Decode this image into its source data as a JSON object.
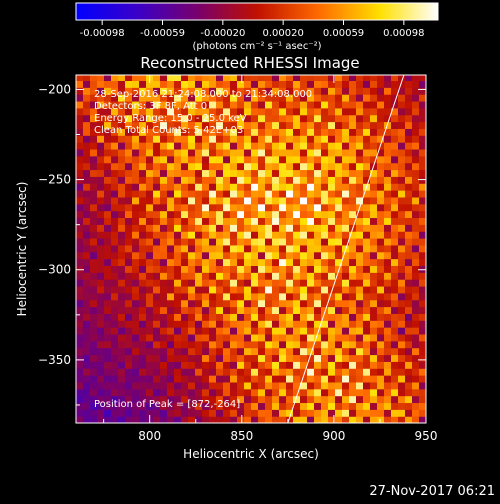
{
  "chart_data": {
    "type": "heatmap",
    "title": "Reconstructed RHESSI Image",
    "xlabel": "Heliocentric X (arcsec)",
    "ylabel": "Heliocentric Y (arcsec)",
    "xlim": [
      760,
      950
    ],
    "ylim": [
      -385,
      -192
    ],
    "x_ticks": [
      800,
      850,
      900,
      950
    ],
    "y_ticks": [
      -200,
      -250,
      -300,
      -350
    ],
    "colorbar": {
      "ticks": [
        "-0.00098",
        "-0.00059",
        "-0.00020",
        "0.00020",
        "0.00059",
        "0.00098"
      ],
      "range": [
        -0.00098,
        0.00098
      ],
      "label": "(photons cm⁻² s⁻¹ asec⁻²)",
      "colors": [
        "#0000ff",
        "#3a00c8",
        "#7a006a",
        "#c01000",
        "#ff6a00",
        "#ffe000",
        "#ffffff"
      ]
    },
    "annotations": [
      "28-Sep-2016 21:24:08.000 to 21:34:08.000",
      "Detectors: 3F 8F, Att 0",
      "Energy Range: 15.0 - 25.0 keV",
      "Clean    Total Counts: 5.42E+03"
    ],
    "peak_text": "Position of Peak = [872,-264]",
    "peak": [
      872,
      -264
    ],
    "limb_line": [
      [
        875,
        -385
      ],
      [
        938,
        -192
      ]
    ]
  },
  "footer": {
    "timestamp": "27-Nov-2017 06:21"
  }
}
